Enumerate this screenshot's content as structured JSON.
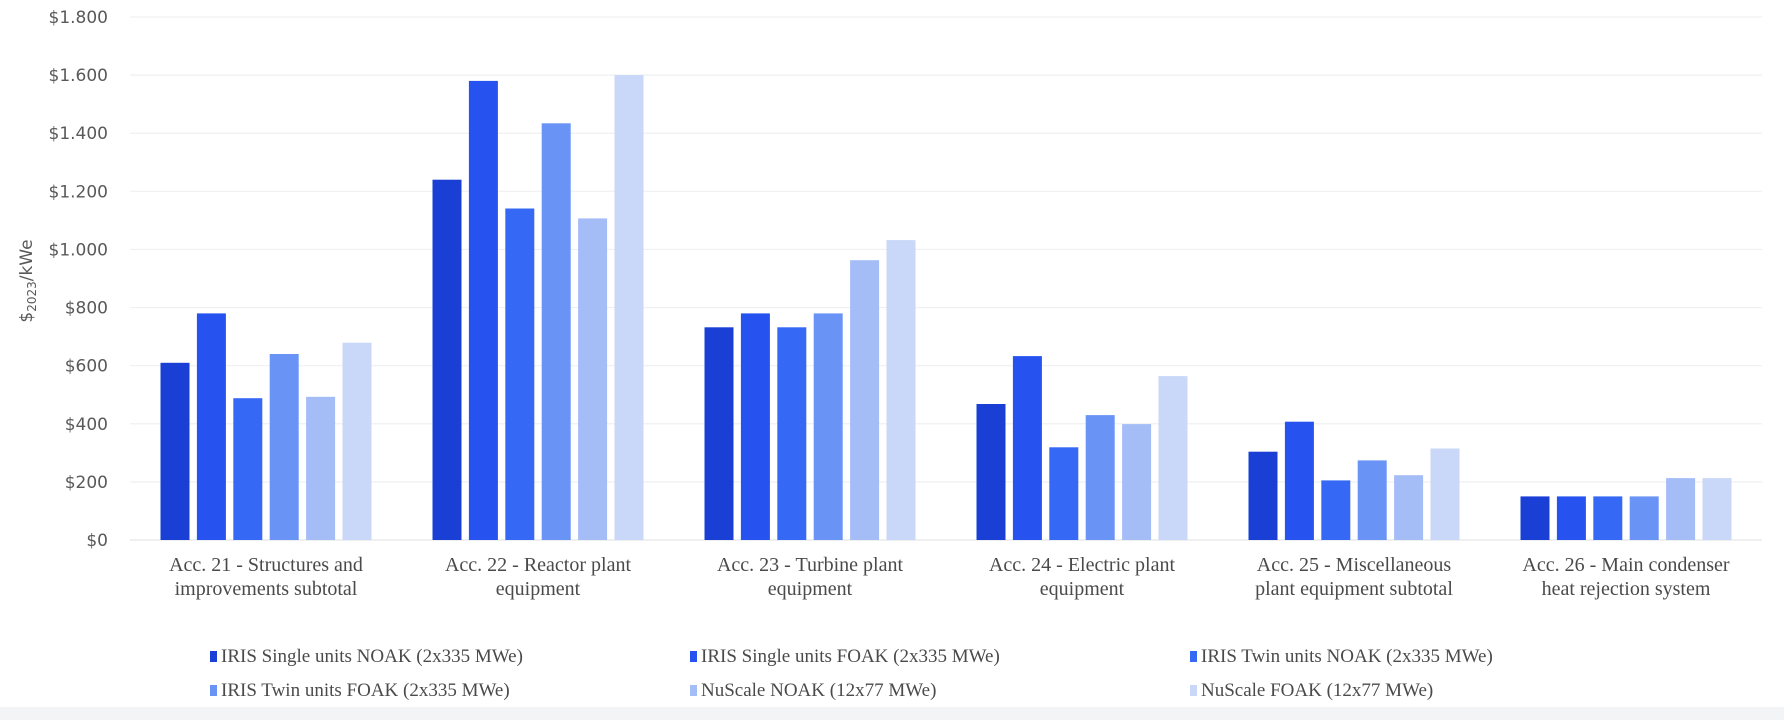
{
  "chart_data": {
    "type": "bar",
    "title": "",
    "xlabel": "",
    "ylabel": "$2023/kWe",
    "ylabel_main": "$",
    "ylabel_sub": "2023",
    "ylabel_tail": "/kWe",
    "ylim": [
      0,
      1800
    ],
    "ytick_step": 200,
    "ytick_labels": [
      "$0",
      "$200",
      "$400",
      "$600",
      "$800",
      "$1.000",
      "$1.200",
      "$1.400",
      "$1.600",
      "$1.800"
    ],
    "grid": true,
    "legend_position": "bottom",
    "categories": [
      [
        "Acc. 21 -  Structures and",
        "improvements subtotal"
      ],
      [
        "Acc. 22 -  Reactor plant",
        "equipment"
      ],
      [
        "Acc. 23 -  Turbine plant",
        "equipment"
      ],
      [
        "Acc. 24 -  Electric plant",
        "equipment"
      ],
      [
        "Acc. 25 -  Miscellaneous",
        "plant equipment subtotal"
      ],
      [
        "Acc. 26 -  Main condenser",
        "heat rejection system"
      ]
    ],
    "series": [
      {
        "name": "IRIS Single units NOAK (2x335 MWe)",
        "color": "#1a3fd4",
        "values": [
          610,
          1240,
          732,
          468,
          304,
          150
        ]
      },
      {
        "name": "IRIS Single units FOAK (2x335 MWe)",
        "color": "#2653f0",
        "values": [
          780,
          1580,
          780,
          633,
          407,
          150
        ]
      },
      {
        "name": "IRIS Twin units NOAK (2x335 MWe)",
        "color": "#3668f6",
        "values": [
          488,
          1141,
          732,
          319,
          205,
          150
        ]
      },
      {
        "name": "IRIS Twin units FOAK (2x335 MWe)",
        "color": "#6a93f6",
        "values": [
          640,
          1434,
          780,
          430,
          274,
          150
        ]
      },
      {
        "name": "NuScale NOAK (12x77 MWe)",
        "color": "#a5bdf7",
        "values": [
          493,
          1107,
          963,
          399,
          223,
          213
        ]
      },
      {
        "name": "NuScale FOAK (12x77 MWe)",
        "color": "#c9d8f8",
        "values": [
          679,
          1600,
          1032,
          564,
          315,
          213
        ]
      }
    ]
  }
}
